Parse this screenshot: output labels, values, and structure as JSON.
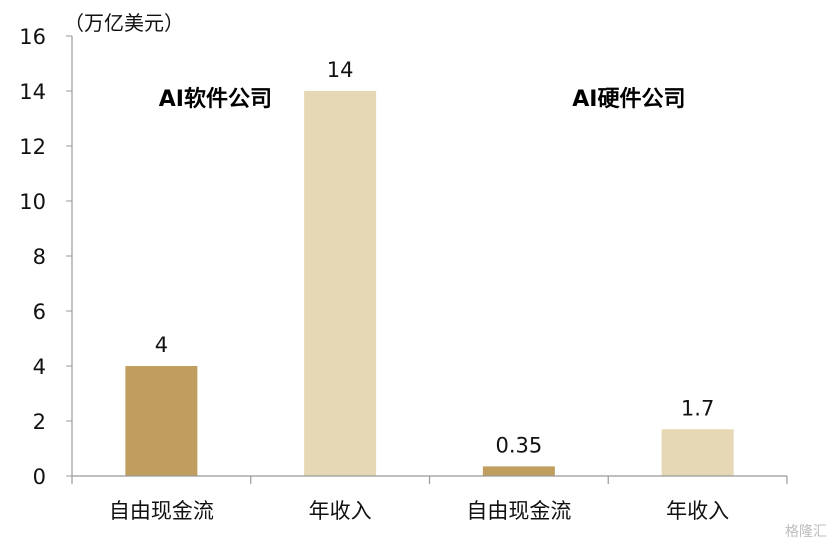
{
  "chart_data": {
    "type": "bar",
    "unit_label": "（万亿美元）",
    "categories": [
      "自由现金流",
      "年收入",
      "自由现金流",
      "年收入"
    ],
    "values": [
      4,
      14,
      0.35,
      1.7
    ],
    "data_labels": [
      "4",
      "14",
      "0.35",
      "1.7"
    ],
    "group_labels": [
      "AI软件公司",
      "AI硬件公司"
    ],
    "yticks": [
      "0",
      "2",
      "4",
      "6",
      "8",
      "10",
      "12",
      "14",
      "16"
    ],
    "ylim": [
      0,
      16
    ],
    "grid": false,
    "colors": [
      "#bf9e5f",
      "#e7d8b5",
      "#bf9e5f",
      "#e7d8b5"
    ]
  },
  "watermark": "格隆汇"
}
